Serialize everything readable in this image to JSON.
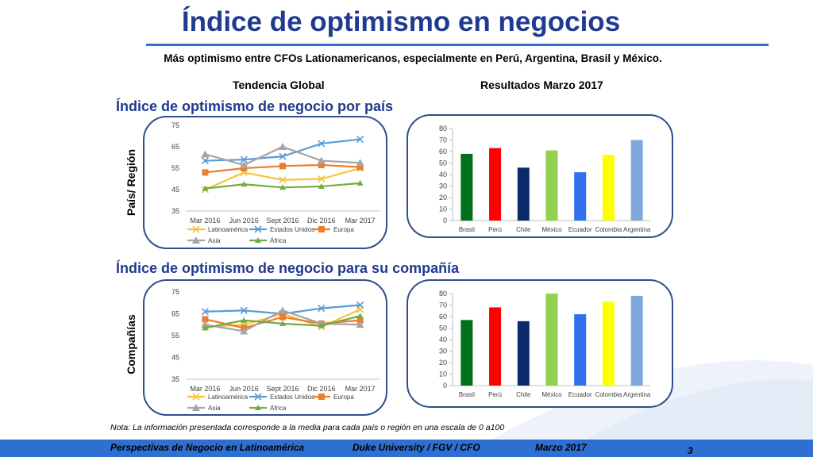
{
  "header": {
    "title": "Índice de optimismo en negocios",
    "subtitle": "Más optimismo entre CFOs Lationamericanos, especialmente en Perú, Argentina, Brasil y México.",
    "col_left": "Tendencia Global",
    "col_right": "Resultados Marzo 2017"
  },
  "sections": {
    "country_heading": "Índice de optimismo de negocio por país",
    "country_side_label": "País/ Región",
    "company_heading": "Índice de optimismo de negocio para su compañía",
    "company_side_label": "Compañías"
  },
  "colors": {
    "Latinoamérica": "#f9c23c",
    "Estados Unidos": "#5b9bd5",
    "Europa": "#ed7d31",
    "Asia": "#a5a5a5",
    "África": "#70ad47",
    "Brasil": "#00701a",
    "Perú": "#ff0000",
    "Chile": "#0a2a6b",
    "México": "#92d050",
    "Ecuador": "#2f6ff0",
    "Colombia": "#ffff00",
    "Argentina": "#7fa8dc"
  },
  "chart_data": [
    {
      "type": "line",
      "categories": [
        "Mar 2016",
        "Jun 2016",
        "Sept 2016",
        "Dic 2016",
        "Mar 2017"
      ],
      "ylim": [
        35,
        75
      ],
      "yticks": [
        35,
        45,
        55,
        65,
        75
      ],
      "series": [
        {
          "name": "Latinoamérica",
          "values": [
            45,
            53,
            49.5,
            50,
            55
          ]
        },
        {
          "name": "Estados Unidos",
          "values": [
            58.5,
            59,
            60.5,
            66.5,
            68.5
          ]
        },
        {
          "name": "Europa",
          "values": [
            53,
            55,
            56,
            56.5,
            55.5
          ]
        },
        {
          "name": "Asia",
          "values": [
            61.5,
            56.5,
            65,
            58.5,
            57.5
          ]
        },
        {
          "name": "África",
          "values": [
            45.5,
            47.5,
            46,
            46.5,
            48
          ]
        }
      ]
    },
    {
      "type": "bar",
      "categories": [
        "Brasil",
        "Perú",
        "Chile",
        "México",
        "Ecuador",
        "Colombia",
        "Argentina"
      ],
      "values": [
        58,
        63,
        46,
        61,
        42,
        57,
        70
      ],
      "ylim": [
        0,
        80
      ],
      "yticks": [
        0,
        10,
        20,
        30,
        40,
        50,
        60,
        70,
        80
      ]
    },
    {
      "type": "line",
      "categories": [
        "Mar 2016",
        "Jun 2016",
        "Sept 2016",
        "Dic 2016",
        "Mar 2017"
      ],
      "ylim": [
        35,
        75
      ],
      "yticks": [
        35,
        45,
        55,
        65,
        75
      ],
      "series": [
        {
          "name": "Latinoamérica",
          "values": [
            59,
            60,
            65,
            59,
            67
          ]
        },
        {
          "name": "Estados Unidos",
          "values": [
            66,
            66.5,
            65,
            67.5,
            69
          ]
        },
        {
          "name": "Europa",
          "values": [
            62.5,
            58.5,
            63.5,
            60.5,
            62
          ]
        },
        {
          "name": "Asia",
          "values": [
            60,
            57,
            66.5,
            60.5,
            60
          ]
        },
        {
          "name": "África",
          "values": [
            58.5,
            62,
            60.5,
            59.5,
            64
          ]
        }
      ]
    },
    {
      "type": "bar",
      "categories": [
        "Brasil",
        "Perú",
        "Chile",
        "México",
        "Ecuador",
        "Colombia",
        "Argentina"
      ],
      "values": [
        57,
        68,
        56,
        80,
        62,
        73,
        78
      ],
      "ylim": [
        0,
        80
      ],
      "yticks": [
        0,
        10,
        20,
        30,
        40,
        50,
        60,
        70,
        80
      ]
    }
  ],
  "footer": {
    "note": "Nota: La información presentada corresponde a la media para cada país o región en una escala de 0 a100",
    "left": "Perspectivas de Negocio en Latinoamérica",
    "center": "Duke University / FGV / CFO",
    "right": "Marzo 2017",
    "page": "3"
  }
}
